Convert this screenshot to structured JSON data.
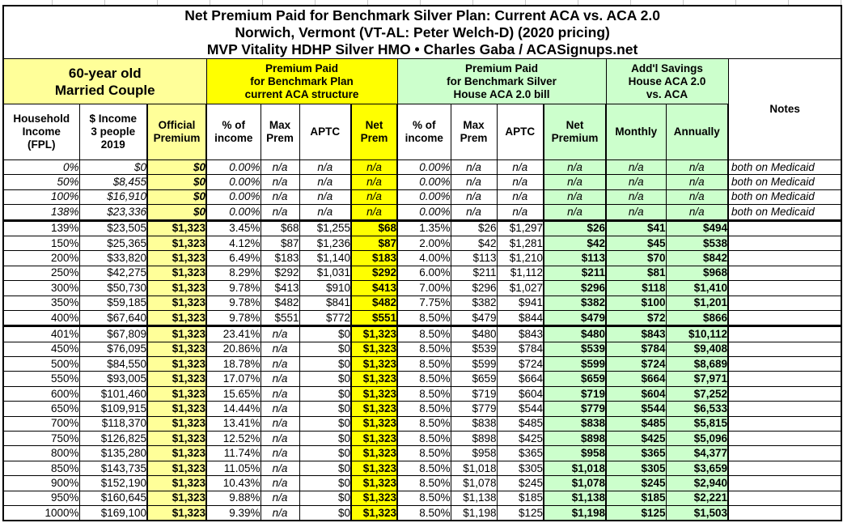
{
  "title": {
    "line1": "Net Premium Paid for Benchmark Silver Plan: Current ACA vs. ACA 2.0",
    "line2": "Norwich, Vermont (VT-AL: Peter Welch-D) (2020 pricing)",
    "line3": "MVP Vitality HDHP Silver HMO • Charles Gaba / ACASignups.net"
  },
  "groups": {
    "demographic": "60-year old\nMarried Couple",
    "current_aca": "Premium Paid\nfor Benchmark Plan\ncurrent ACA structure",
    "aca2": "Premium Paid\nfor Benchmark Silver\nHouse ACA 2.0 bill",
    "savings": "Add'l Savings\nHouse ACA 2.0\nvs. ACA",
    "notes": "Notes"
  },
  "columns": [
    "Household\nIncome\n(FPL)",
    "$ Income\n3 people\n2019",
    "Official\nPremium",
    "% of\nincome",
    "Max\nPrem",
    "APTC",
    "Net\nPrem",
    "% of\nincome",
    "Max\nPrem",
    "APTC",
    "Net\nPremium",
    "Monthly",
    "Annually"
  ],
  "colors": {
    "light_yellow": "#ffff99",
    "yellow": "#ffff00",
    "light_green": "#ccffcc",
    "border": "#000000",
    "background": "#ffffff"
  },
  "rows": [
    {
      "band": "medicaid",
      "fpl": "0%",
      "income": "$0",
      "official": "$0",
      "a_pct": "0.00%",
      "a_max": "n/a",
      "a_aptc": "n/a",
      "a_net": "n/a",
      "b_pct": "0.00%",
      "b_max": "n/a",
      "b_aptc": "n/a",
      "b_net": "n/a",
      "monthly": "n/a",
      "annually": "n/a",
      "note": "both on Medicaid"
    },
    {
      "band": "medicaid",
      "fpl": "50%",
      "income": "$8,455",
      "official": "$0",
      "a_pct": "0.00%",
      "a_max": "n/a",
      "a_aptc": "n/a",
      "a_net": "n/a",
      "b_pct": "0.00%",
      "b_max": "n/a",
      "b_aptc": "n/a",
      "b_net": "n/a",
      "monthly": "n/a",
      "annually": "n/a",
      "note": "both on Medicaid"
    },
    {
      "band": "medicaid",
      "fpl": "100%",
      "income": "$16,910",
      "official": "$0",
      "a_pct": "0.00%",
      "a_max": "n/a",
      "a_aptc": "n/a",
      "a_net": "n/a",
      "b_pct": "0.00%",
      "b_max": "n/a",
      "b_aptc": "n/a",
      "b_net": "n/a",
      "monthly": "n/a",
      "annually": "n/a",
      "note": "both on Medicaid"
    },
    {
      "band": "medicaid",
      "fpl": "138%",
      "income": "$23,336",
      "official": "$0",
      "a_pct": "0.00%",
      "a_max": "n/a",
      "a_aptc": "n/a",
      "a_net": "n/a",
      "b_pct": "0.00%",
      "b_max": "n/a",
      "b_aptc": "n/a",
      "b_net": "n/a",
      "monthly": "n/a",
      "annually": "n/a",
      "note": "both on Medicaid"
    },
    {
      "band": "subsidized",
      "fpl": "139%",
      "income": "$23,505",
      "official": "$1,323",
      "a_pct": "3.45%",
      "a_max": "$68",
      "a_aptc": "$1,255",
      "a_net": "$68",
      "b_pct": "1.35%",
      "b_max": "$26",
      "b_aptc": "$1,297",
      "b_net": "$26",
      "monthly": "$41",
      "annually": "$494",
      "note": ""
    },
    {
      "band": "subsidized",
      "fpl": "150%",
      "income": "$25,365",
      "official": "$1,323",
      "a_pct": "4.12%",
      "a_max": "$87",
      "a_aptc": "$1,236",
      "a_net": "$87",
      "b_pct": "2.00%",
      "b_max": "$42",
      "b_aptc": "$1,281",
      "b_net": "$42",
      "monthly": "$45",
      "annually": "$538",
      "note": ""
    },
    {
      "band": "subsidized",
      "fpl": "200%",
      "income": "$33,820",
      "official": "$1,323",
      "a_pct": "6.49%",
      "a_max": "$183",
      "a_aptc": "$1,140",
      "a_net": "$183",
      "b_pct": "4.00%",
      "b_max": "$113",
      "b_aptc": "$1,210",
      "b_net": "$113",
      "monthly": "$70",
      "annually": "$842",
      "note": ""
    },
    {
      "band": "subsidized",
      "fpl": "250%",
      "income": "$42,275",
      "official": "$1,323",
      "a_pct": "8.29%",
      "a_max": "$292",
      "a_aptc": "$1,031",
      "a_net": "$292",
      "b_pct": "6.00%",
      "b_max": "$211",
      "b_aptc": "$1,112",
      "b_net": "$211",
      "monthly": "$81",
      "annually": "$968",
      "note": ""
    },
    {
      "band": "subsidized",
      "fpl": "300%",
      "income": "$50,730",
      "official": "$1,323",
      "a_pct": "9.78%",
      "a_max": "$413",
      "a_aptc": "$910",
      "a_net": "$413",
      "b_pct": "7.00%",
      "b_max": "$296",
      "b_aptc": "$1,027",
      "b_net": "$296",
      "monthly": "$118",
      "annually": "$1,410",
      "note": ""
    },
    {
      "band": "subsidized",
      "fpl": "350%",
      "income": "$59,185",
      "official": "$1,323",
      "a_pct": "9.78%",
      "a_max": "$482",
      "a_aptc": "$841",
      "a_net": "$482",
      "b_pct": "7.75%",
      "b_max": "$382",
      "b_aptc": "$941",
      "b_net": "$382",
      "monthly": "$100",
      "annually": "$1,201",
      "note": ""
    },
    {
      "band": "subsidized",
      "fpl": "400%",
      "income": "$67,640",
      "official": "$1,323",
      "a_pct": "9.78%",
      "a_max": "$551",
      "a_aptc": "$772",
      "a_net": "$551",
      "b_pct": "8.50%",
      "b_max": "$479",
      "b_aptc": "$844",
      "b_net": "$479",
      "monthly": "$72",
      "annually": "$866",
      "note": ""
    },
    {
      "band": "over400",
      "fpl": "401%",
      "income": "$67,809",
      "official": "$1,323",
      "a_pct": "23.41%",
      "a_max": "n/a",
      "a_aptc": "$0",
      "a_net": "$1,323",
      "b_pct": "8.50%",
      "b_max": "$480",
      "b_aptc": "$843",
      "b_net": "$480",
      "monthly": "$843",
      "annually": "$10,112",
      "note": ""
    },
    {
      "band": "over400",
      "fpl": "450%",
      "income": "$76,095",
      "official": "$1,323",
      "a_pct": "20.86%",
      "a_max": "n/a",
      "a_aptc": "$0",
      "a_net": "$1,323",
      "b_pct": "8.50%",
      "b_max": "$539",
      "b_aptc": "$784",
      "b_net": "$539",
      "monthly": "$784",
      "annually": "$9,408",
      "note": ""
    },
    {
      "band": "over400",
      "fpl": "500%",
      "income": "$84,550",
      "official": "$1,323",
      "a_pct": "18.78%",
      "a_max": "n/a",
      "a_aptc": "$0",
      "a_net": "$1,323",
      "b_pct": "8.50%",
      "b_max": "$599",
      "b_aptc": "$724",
      "b_net": "$599",
      "monthly": "$724",
      "annually": "$8,689",
      "note": ""
    },
    {
      "band": "over400",
      "fpl": "550%",
      "income": "$93,005",
      "official": "$1,323",
      "a_pct": "17.07%",
      "a_max": "n/a",
      "a_aptc": "$0",
      "a_net": "$1,323",
      "b_pct": "8.50%",
      "b_max": "$659",
      "b_aptc": "$664",
      "b_net": "$659",
      "monthly": "$664",
      "annually": "$7,971",
      "note": ""
    },
    {
      "band": "over400",
      "fpl": "600%",
      "income": "$101,460",
      "official": "$1,323",
      "a_pct": "15.65%",
      "a_max": "n/a",
      "a_aptc": "$0",
      "a_net": "$1,323",
      "b_pct": "8.50%",
      "b_max": "$719",
      "b_aptc": "$604",
      "b_net": "$719",
      "monthly": "$604",
      "annually": "$7,252",
      "note": ""
    },
    {
      "band": "over400",
      "fpl": "650%",
      "income": "$109,915",
      "official": "$1,323",
      "a_pct": "14.44%",
      "a_max": "n/a",
      "a_aptc": "$0",
      "a_net": "$1,323",
      "b_pct": "8.50%",
      "b_max": "$779",
      "b_aptc": "$544",
      "b_net": "$779",
      "monthly": "$544",
      "annually": "$6,533",
      "note": ""
    },
    {
      "band": "over400",
      "fpl": "700%",
      "income": "$118,370",
      "official": "$1,323",
      "a_pct": "13.41%",
      "a_max": "n/a",
      "a_aptc": "$0",
      "a_net": "$1,323",
      "b_pct": "8.50%",
      "b_max": "$838",
      "b_aptc": "$485",
      "b_net": "$838",
      "monthly": "$485",
      "annually": "$5,815",
      "note": ""
    },
    {
      "band": "over400",
      "fpl": "750%",
      "income": "$126,825",
      "official": "$1,323",
      "a_pct": "12.52%",
      "a_max": "n/a",
      "a_aptc": "$0",
      "a_net": "$1,323",
      "b_pct": "8.50%",
      "b_max": "$898",
      "b_aptc": "$425",
      "b_net": "$898",
      "monthly": "$425",
      "annually": "$5,096",
      "note": ""
    },
    {
      "band": "over400",
      "fpl": "800%",
      "income": "$135,280",
      "official": "$1,323",
      "a_pct": "11.74%",
      "a_max": "n/a",
      "a_aptc": "$0",
      "a_net": "$1,323",
      "b_pct": "8.50%",
      "b_max": "$958",
      "b_aptc": "$365",
      "b_net": "$958",
      "monthly": "$365",
      "annually": "$4,377",
      "note": ""
    },
    {
      "band": "over400",
      "fpl": "850%",
      "income": "$143,735",
      "official": "$1,323",
      "a_pct": "11.05%",
      "a_max": "n/a",
      "a_aptc": "$0",
      "a_net": "$1,323",
      "b_pct": "8.50%",
      "b_max": "$1,018",
      "b_aptc": "$305",
      "b_net": "$1,018",
      "monthly": "$305",
      "annually": "$3,659",
      "note": ""
    },
    {
      "band": "over400",
      "fpl": "900%",
      "income": "$152,190",
      "official": "$1,323",
      "a_pct": "10.43%",
      "a_max": "n/a",
      "a_aptc": "$0",
      "a_net": "$1,323",
      "b_pct": "8.50%",
      "b_max": "$1,078",
      "b_aptc": "$245",
      "b_net": "$1,078",
      "monthly": "$245",
      "annually": "$2,940",
      "note": ""
    },
    {
      "band": "over400",
      "fpl": "950%",
      "income": "$160,645",
      "official": "$1,323",
      "a_pct": "9.88%",
      "a_max": "n/a",
      "a_aptc": "$0",
      "a_net": "$1,323",
      "b_pct": "8.50%",
      "b_max": "$1,138",
      "b_aptc": "$185",
      "b_net": "$1,138",
      "monthly": "$185",
      "annually": "$2,221",
      "note": ""
    },
    {
      "band": "over400",
      "fpl": "1000%",
      "income": "$169,100",
      "official": "$1,323",
      "a_pct": "9.39%",
      "a_max": "n/a",
      "a_aptc": "$0",
      "a_net": "$1,323",
      "b_pct": "8.50%",
      "b_max": "$1,198",
      "b_aptc": "$125",
      "b_net": "$1,198",
      "monthly": "$125",
      "annually": "$1,503",
      "note": ""
    }
  ]
}
